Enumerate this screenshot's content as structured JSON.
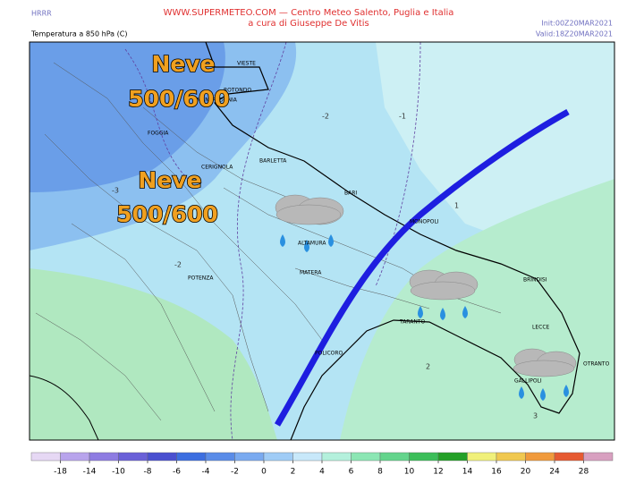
{
  "header": {
    "model": "HRRR",
    "field": "Temperatura a 850 hPa (C)",
    "site": "WWW.SUPERMETEO.COM — Centro Meteo Salento, Puglia e Italia",
    "author": "a cura di Giuseppe De Vitis",
    "init": "Init:00Z20MAR2021",
    "valid": "Valid:18Z20MAR2021"
  },
  "annotations": [
    {
      "line1": "Neve",
      "line2": "500/600"
    },
    {
      "line1": "Neve",
      "line2": "500/600"
    }
  ],
  "cities": [
    "VIESTE",
    "ROTONDO",
    "MANFREDONIA",
    "FOGGIA",
    "CERIGNOLA",
    "BARLETTA",
    "BARI",
    "MONOPOLI",
    "ALTAMURA",
    "MATERA",
    "POTENZA",
    "TARANTO",
    "BRINDISI",
    "LECCE",
    "OTRANTO",
    "GALLIPOLI",
    "POLICORO"
  ],
  "contour_labels": [
    -2,
    -1,
    -3,
    -2,
    1,
    2,
    3
  ],
  "colorbar": {
    "ticks": [
      -18,
      -14,
      -10,
      -8,
      -6,
      -4,
      -2,
      0,
      2,
      4,
      6,
      8,
      10,
      12,
      14,
      16,
      20,
      24,
      28
    ],
    "colors": [
      "#e6d8f4",
      "#b8a4ec",
      "#8e7ce2",
      "#6a60d8",
      "#4a50d0",
      "#3c6ee0",
      "#5a8ce8",
      "#7aaaf0",
      "#a0ccf6",
      "#c8e8fa",
      "#b4f0dc",
      "#8ce6b4",
      "#64d48c",
      "#3cbe5a",
      "#24a028",
      "#f0f07a",
      "#f0c850",
      "#f09a3c",
      "#e65a32",
      "#d8a0c0"
    ]
  }
}
